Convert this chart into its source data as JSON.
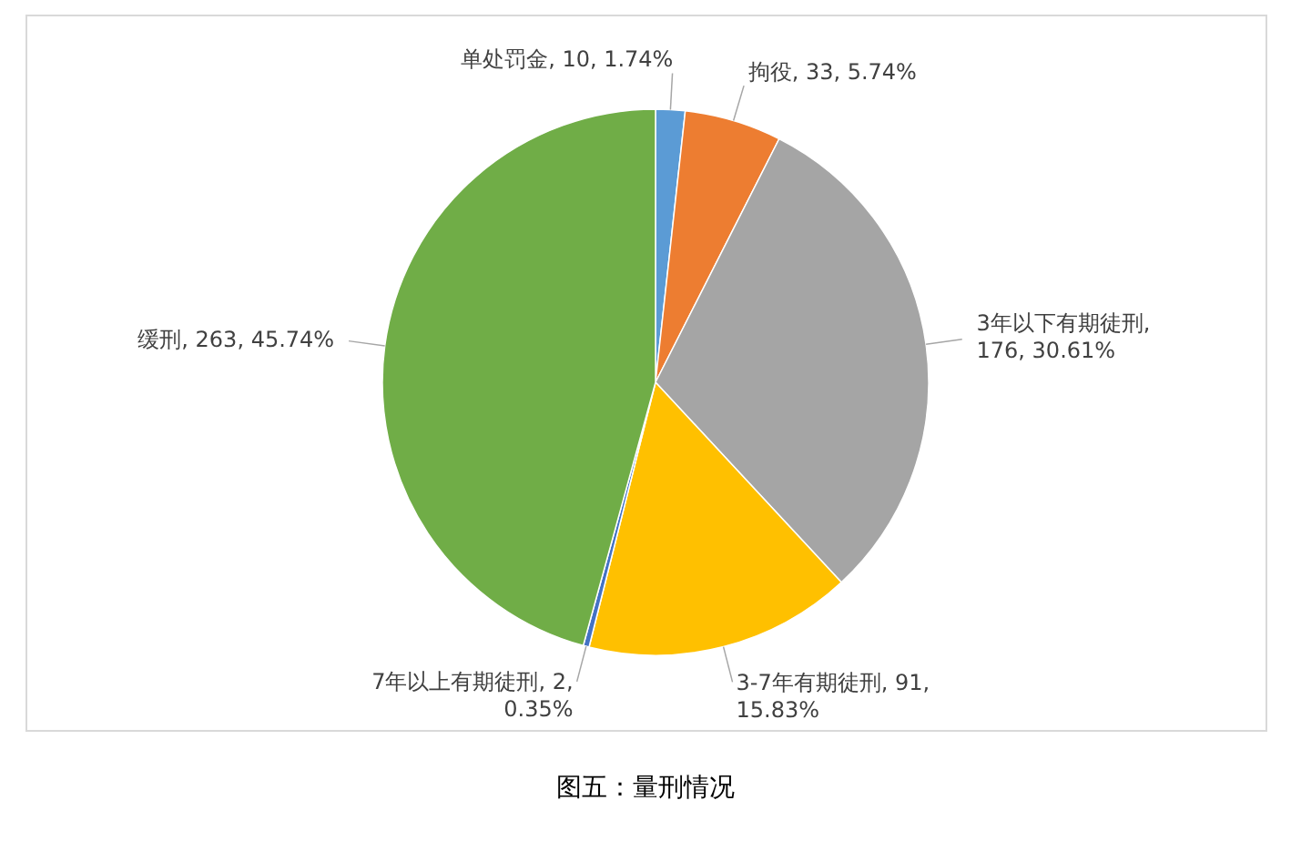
{
  "chart_data": {
    "type": "pie",
    "title": "图五：量刑情况",
    "categories": [
      "单处罚金",
      "拘役",
      "3年以下有期徒刑",
      "3-7年有期徒刑",
      "7年以上有期徒刑",
      "缓刑"
    ],
    "values": [
      10,
      33,
      176,
      91,
      2,
      263
    ],
    "value_labels": [
      ", 10, 1.74%",
      ", 33, 5.74%",
      ", 176, 30.61%",
      ", 91, 15.83%",
      ", 2, 0.35%",
      ", 263, 45.74%"
    ],
    "colors": [
      "#5b9bd5",
      "#ed7d31",
      "#a5a5a5",
      "#ffc000",
      "#4472c4",
      "#70ad47"
    ],
    "data_labels": true,
    "legend": false
  }
}
